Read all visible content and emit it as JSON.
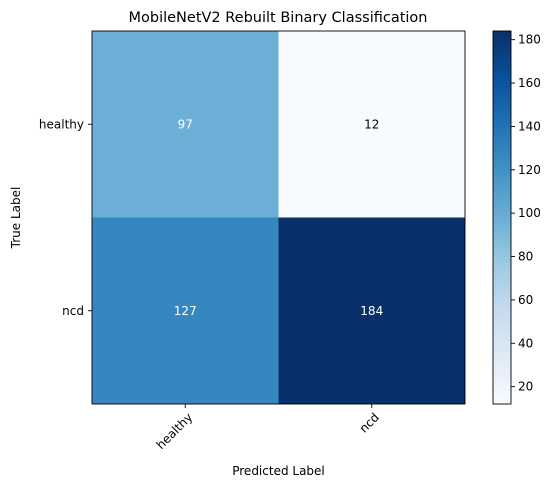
{
  "chart_data": {
    "type": "heatmap",
    "title": "MobileNetV2 Rebuilt Binary Classification",
    "xlabel": "Predicted Label",
    "ylabel": "True Label",
    "x_categories": [
      "healthy",
      "ncd"
    ],
    "y_categories": [
      "healthy",
      "ncd"
    ],
    "values": [
      [
        97,
        12
      ],
      [
        127,
        184
      ]
    ],
    "colormap": "Blues",
    "colorbar": {
      "min": 12,
      "max": 184,
      "ticks": [
        20,
        40,
        60,
        80,
        100,
        120,
        140,
        160,
        180
      ]
    },
    "x_tick_rotation_deg": 45,
    "text_color_light": "#ffffff",
    "text_color_dark": "#000000",
    "grid": false
  }
}
